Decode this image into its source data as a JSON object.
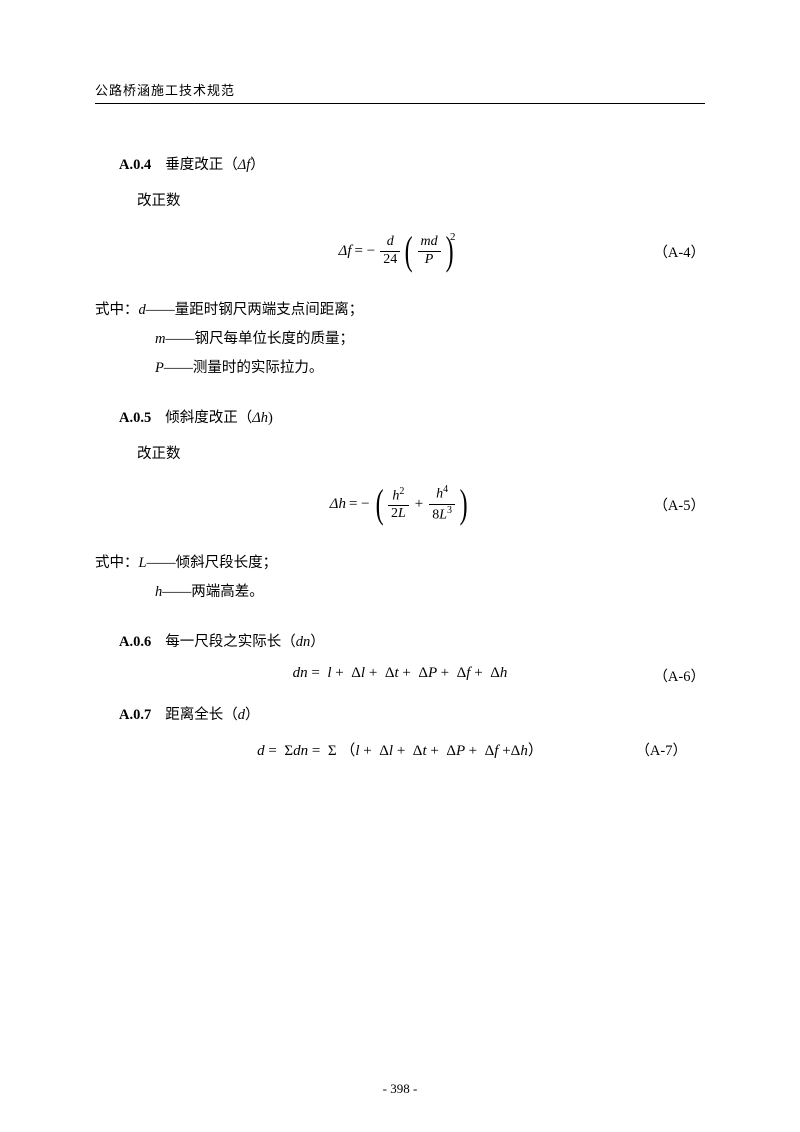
{
  "header": {
    "title": "公路桥涵施工技术规范"
  },
  "sections": {
    "a04": {
      "number": "A.0.4",
      "title_pre": "垂度改正（",
      "title_sym": "Δf",
      "title_post": "）",
      "subtext": "改正数",
      "eq_lhs": "Δf",
      "eq_label": "（A-4）",
      "frac1_num": "d",
      "frac1_den": "24",
      "frac2_num": "md",
      "frac2_den": "P",
      "exp": "2",
      "def_intro": "式中：",
      "def_d_sym": "d",
      "def_d_text": "——量距时钢尺两端支点间距离；",
      "def_m_sym": "m",
      "def_m_text": "——钢尺每单位长度的质量；",
      "def_p_sym": "P",
      "def_p_text": "——测量时的实际拉力。"
    },
    "a05": {
      "number": "A.0.5",
      "title_pre": "倾斜度改正（",
      "title_sym": "Δh",
      "title_post": ")",
      "subtext": "改正数",
      "eq_lhs": "Δh",
      "eq_label": "（A-5）",
      "frac1_num": "h",
      "frac1_num_exp": "2",
      "frac1_den_base": "2L",
      "frac2_num": "h",
      "frac2_num_exp": "4",
      "frac2_den_coef": "8L",
      "frac2_den_exp": "3",
      "def_intro": "式中：",
      "def_l_sym": "L",
      "def_l_text": "——倾斜尺段长度；",
      "def_h_sym": "h",
      "def_h_text": "——两端高差。"
    },
    "a06": {
      "number": "A.0.6",
      "title_pre": "每一尺段之实际长（",
      "title_sym": "dn",
      "title_post": "）",
      "eq_text": "dn =  l + Δl + Δt + ΔP + Δf + Δh",
      "eq_label": "（A-6）"
    },
    "a07": {
      "number": "A.0.7",
      "title_pre": "距离全长（",
      "title_sym": "d",
      "title_post": "）",
      "eq_text": "d = Σdn = Σ（l + Δl + Δt + ΔP + Δf +Δh）",
      "eq_label": "（A-7）"
    }
  },
  "footer": {
    "page": "- 398 -"
  }
}
